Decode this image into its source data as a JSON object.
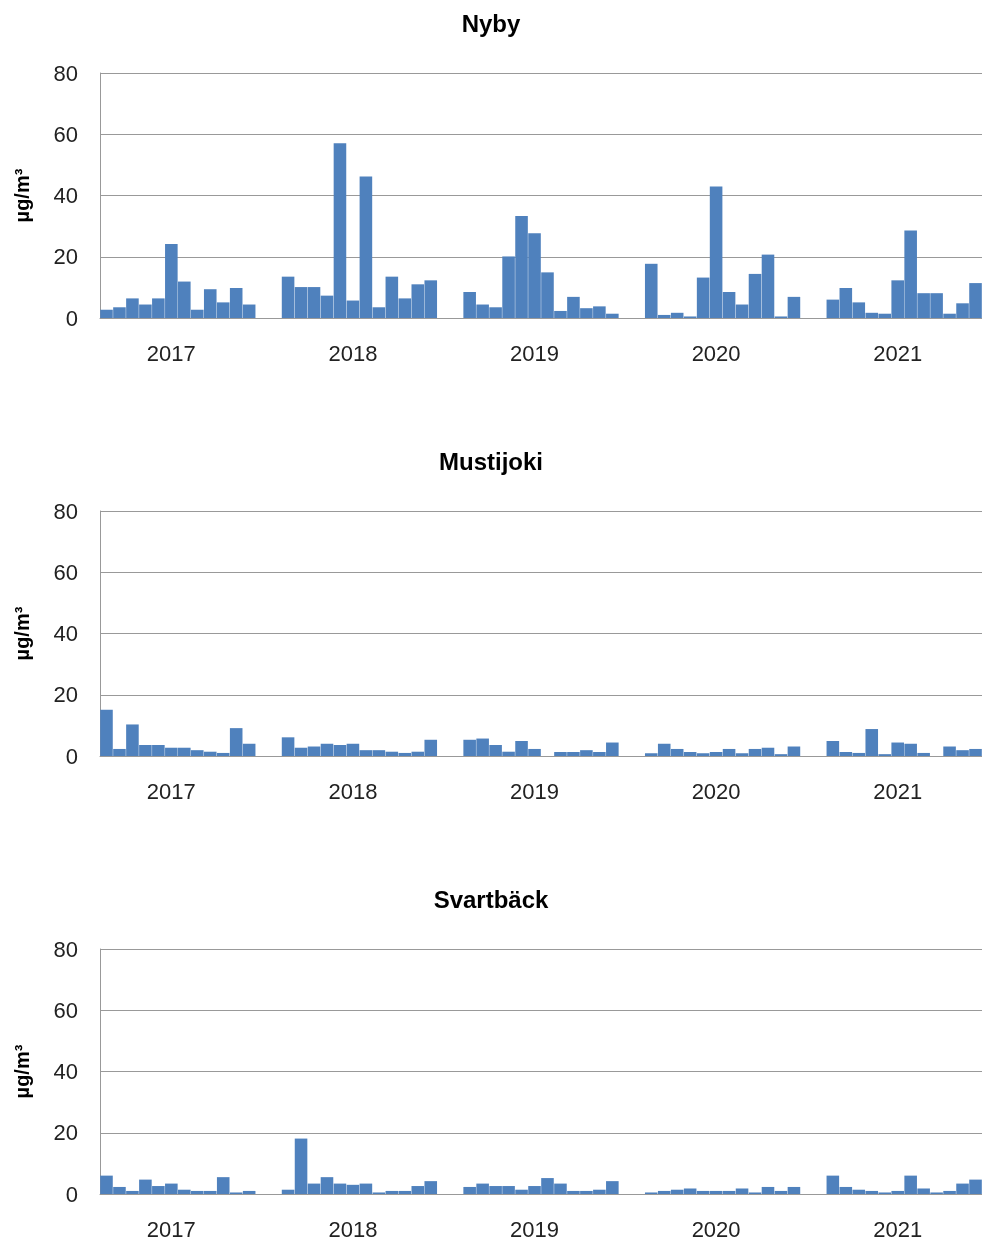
{
  "chart_data": [
    {
      "type": "bar",
      "title": "Nyby",
      "ylabel": "µg/m³",
      "color": "#4f81bd",
      "ylim": [
        0,
        80
      ],
      "yticks": [
        0,
        20,
        40,
        60,
        80
      ],
      "grid": "y",
      "categories": [
        null,
        null,
        null,
        null,
        null,
        "2017",
        null,
        null,
        null,
        null,
        null,
        null,
        null,
        null,
        null,
        null,
        null,
        null,
        null,
        "2018",
        null,
        null,
        null,
        null,
        null,
        null,
        null,
        null,
        null,
        null,
        null,
        null,
        null,
        "2019",
        null,
        null,
        null,
        null,
        null,
        null,
        null,
        null,
        null,
        null,
        null,
        null,
        null,
        "2020",
        null,
        null,
        null,
        null,
        null,
        null,
        null,
        null,
        null,
        null,
        null,
        null,
        null,
        "2021",
        null,
        null,
        null,
        null,
        null,
        null
      ],
      "values": [
        2.7,
        3.5,
        6.4,
        4.4,
        6.4,
        24.2,
        11.9,
        2.7,
        9.4,
        5.1,
        9.8,
        4.4,
        null,
        null,
        13.5,
        10.1,
        10.1,
        7.3,
        57.1,
        5.7,
        46.2,
        3.5,
        13.5,
        6.4,
        11,
        12.3,
        null,
        null,
        8.5,
        4.4,
        3.5,
        20.1,
        33.3,
        27.7,
        14.9,
        2.3,
        6.9,
        3.2,
        3.8,
        1.4,
        null,
        null,
        17.7,
        1,
        1.7,
        0.5,
        13.2,
        42.9,
        8.5,
        4.4,
        14.4,
        20.7,
        0.5,
        6.9,
        null,
        null,
        6,
        9.8,
        5.1,
        1.7,
        1.4,
        12.3,
        28.6,
        8.1,
        8.1,
        1.4,
        4.8,
        11.4
      ]
    },
    {
      "type": "bar",
      "title": "Mustijoki",
      "ylabel": "µg/m³",
      "color": "#4f81bd",
      "ylim": [
        0,
        80
      ],
      "yticks": [
        0,
        20,
        40,
        60,
        80
      ],
      "grid": "y",
      "categories": [
        null,
        null,
        null,
        null,
        null,
        "2017",
        null,
        null,
        null,
        null,
        null,
        null,
        null,
        null,
        null,
        null,
        null,
        null,
        null,
        "2018",
        null,
        null,
        null,
        null,
        null,
        null,
        null,
        null,
        null,
        null,
        null,
        null,
        null,
        "2019",
        null,
        null,
        null,
        null,
        null,
        null,
        null,
        null,
        null,
        null,
        null,
        null,
        null,
        "2020",
        null,
        null,
        null,
        null,
        null,
        null,
        null,
        null,
        null,
        null,
        null,
        null,
        null,
        "2021",
        null,
        null,
        null,
        null,
        null,
        null
      ],
      "values": [
        15.1,
        2.3,
        10.3,
        3.6,
        3.6,
        2.7,
        2.7,
        1.9,
        1.4,
        1,
        9.1,
        4,
        null,
        null,
        6.1,
        2.7,
        3.1,
        4,
        3.6,
        4,
        1.9,
        1.9,
        1.4,
        1,
        1.4,
        5.3,
        null,
        null,
        5.3,
        5.7,
        3.6,
        1.4,
        4.9,
        2.3,
        null,
        1.3,
        1.3,
        1.9,
        1.3,
        4.4,
        null,
        null,
        0.9,
        4,
        2.3,
        1.3,
        0.9,
        1.3,
        2.3,
        0.9,
        2.3,
        2.7,
        0.6,
        3.1,
        null,
        null,
        4.9,
        1.3,
        1,
        8.8,
        0.6,
        4.4,
        4,
        1,
        null,
        3.1,
        1.9,
        2.3
      ]
    },
    {
      "type": "bar",
      "title": "Svartbäck",
      "ylabel": "µg/m³",
      "color": "#4f81bd",
      "ylim": [
        0,
        80
      ],
      "yticks": [
        0,
        20,
        40,
        60,
        80
      ],
      "grid": "y",
      "categories": [
        null,
        null,
        null,
        null,
        null,
        "2017",
        null,
        null,
        null,
        null,
        null,
        null,
        null,
        null,
        null,
        null,
        null,
        null,
        null,
        "2018",
        null,
        null,
        null,
        null,
        null,
        null,
        null,
        null,
        null,
        null,
        null,
        null,
        null,
        "2019",
        null,
        null,
        null,
        null,
        null,
        null,
        null,
        null,
        null,
        null,
        null,
        null,
        null,
        "2020",
        null,
        null,
        null,
        null,
        null,
        null,
        null,
        null,
        null,
        null,
        null,
        null,
        null,
        "2021",
        null,
        null,
        null,
        null,
        null,
        null
      ],
      "values": [
        6,
        2.3,
        1,
        4.7,
        2.6,
        3.4,
        1.4,
        1,
        1,
        5.5,
        0.5,
        1,
        null,
        null,
        1.4,
        18.1,
        3.4,
        5.5,
        3.4,
        3,
        3.4,
        0.5,
        1,
        1,
        2.6,
        4.2,
        null,
        null,
        2.3,
        3.4,
        2.6,
        2.6,
        1.4,
        2.6,
        5.2,
        3.4,
        1,
        1,
        1.4,
        4.2,
        null,
        null,
        0.5,
        1,
        1.4,
        1.8,
        1,
        1,
        1,
        1.8,
        0.5,
        2.3,
        1,
        2.3,
        null,
        null,
        6,
        2.3,
        1.4,
        1,
        0.5,
        1,
        6,
        1.8,
        0.5,
        1,
        3.4,
        4.7
      ]
    }
  ]
}
